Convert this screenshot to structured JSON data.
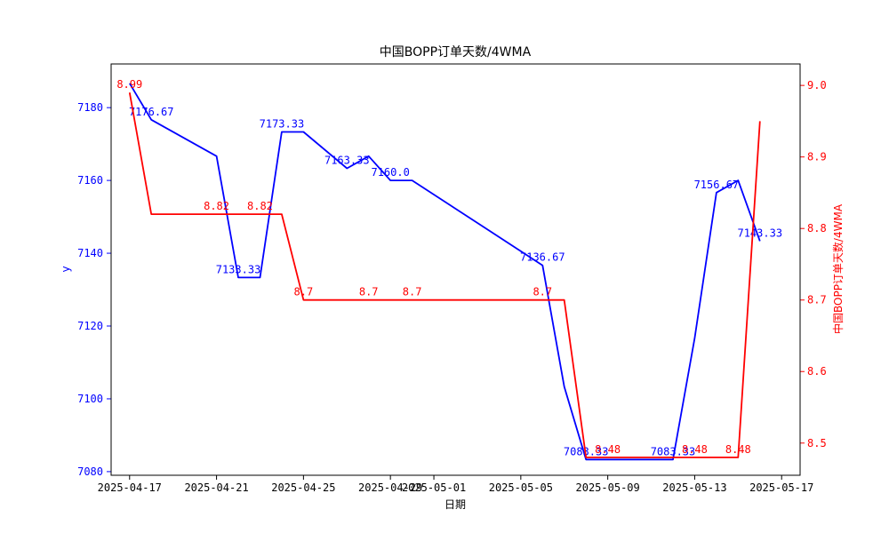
{
  "chart_data": {
    "type": "line",
    "title": "中国BOPP订单天数/4WMA",
    "xlabel": "日期",
    "ylabel_left": "y",
    "ylabel_right": "中国BOPP订单天数/4WMA",
    "grid": false,
    "x_ticks": [
      "2025-04-17",
      "2025-04-21",
      "2025-04-25",
      "2025-04-29",
      "2025-05-01",
      "2025-05-05",
      "2025-05-09",
      "2025-05-13",
      "2025-05-17"
    ],
    "y_left_ticks": [
      7080,
      7100,
      7120,
      7140,
      7160,
      7180
    ],
    "y_right_ticks": [
      "8.5",
      "8.6",
      "8.7",
      "8.8",
      "8.9",
      "9.0"
    ],
    "y_left_range": [
      7079,
      7192
    ],
    "y_right_range": [
      8.455,
      9.03
    ],
    "series": [
      {
        "axis": "left",
        "color": "#0000ff",
        "points": [
          {
            "x": "2025-04-17",
            "y": 7186.67
          },
          {
            "x": "2025-04-18",
            "y": 7176.67
          },
          {
            "x": "2025-04-21",
            "y": 7166.67
          },
          {
            "x": "2025-04-22",
            "y": 7133.33
          },
          {
            "x": "2025-04-23",
            "y": 7133.33
          },
          {
            "x": "2025-04-24",
            "y": 7173.33
          },
          {
            "x": "2025-04-25",
            "y": 7173.33
          },
          {
            "x": "2025-04-27",
            "y": 7163.33
          },
          {
            "x": "2025-04-28",
            "y": 7166.67
          },
          {
            "x": "2025-04-29",
            "y": 7160.0
          },
          {
            "x": "2025-04-30",
            "y": 7160.0
          },
          {
            "x": "2025-05-06",
            "y": 7136.67
          },
          {
            "x": "2025-05-07",
            "y": 7103.33
          },
          {
            "x": "2025-05-08",
            "y": 7083.33
          },
          {
            "x": "2025-05-09",
            "y": 7083.33
          },
          {
            "x": "2025-05-12",
            "y": 7083.33
          },
          {
            "x": "2025-05-13",
            "y": 7116.67
          },
          {
            "x": "2025-05-14",
            "y": 7156.67
          },
          {
            "x": "2025-05-15",
            "y": 7160.0
          },
          {
            "x": "2025-05-16",
            "y": 7143.33
          }
        ],
        "labels": [
          {
            "x": "2025-04-18",
            "y": 7176.67,
            "text": "7176.67"
          },
          {
            "x": "2025-04-22",
            "y": 7133.33,
            "text": "7133.33"
          },
          {
            "x": "2025-04-24",
            "y": 7173.33,
            "text": "7173.33"
          },
          {
            "x": "2025-04-27",
            "y": 7163.33,
            "text": "7163.33"
          },
          {
            "x": "2025-04-29",
            "y": 7160.0,
            "text": "7160.0"
          },
          {
            "x": "2025-05-06",
            "y": 7136.67,
            "text": "7136.67"
          },
          {
            "x": "2025-05-08",
            "y": 7083.33,
            "text": "7083.33"
          },
          {
            "x": "2025-05-12",
            "y": 7083.33,
            "text": "7083.33"
          },
          {
            "x": "2025-05-14",
            "y": 7156.67,
            "text": "7156.67"
          },
          {
            "x": "2025-05-16",
            "y": 7143.33,
            "text": "7143.33"
          }
        ]
      },
      {
        "axis": "right",
        "color": "#ff0000",
        "points": [
          {
            "x": "2025-04-17",
            "y": 8.99
          },
          {
            "x": "2025-04-18",
            "y": 8.82
          },
          {
            "x": "2025-04-24",
            "y": 8.82
          },
          {
            "x": "2025-04-25",
            "y": 8.7
          },
          {
            "x": "2025-05-07",
            "y": 8.7
          },
          {
            "x": "2025-05-08",
            "y": 8.48
          },
          {
            "x": "2025-05-15",
            "y": 8.48
          },
          {
            "x": "2025-05-16",
            "y": 8.95
          }
        ],
        "labels": [
          {
            "x": "2025-04-17",
            "y": 8.99,
            "text": "8.99"
          },
          {
            "x": "2025-04-21",
            "y": 8.82,
            "text": "8.82"
          },
          {
            "x": "2025-04-23",
            "y": 8.82,
            "text": "8.82"
          },
          {
            "x": "2025-04-25",
            "y": 8.7,
            "text": "8.7"
          },
          {
            "x": "2025-04-28",
            "y": 8.7,
            "text": "8.7"
          },
          {
            "x": "2025-04-30",
            "y": 8.7,
            "text": "8.7"
          },
          {
            "x": "2025-05-06",
            "y": 8.7,
            "text": "8.7"
          },
          {
            "x": "2025-05-09",
            "y": 8.48,
            "text": "8.48"
          },
          {
            "x": "2025-05-13",
            "y": 8.48,
            "text": "8.48"
          },
          {
            "x": "2025-05-15",
            "y": 8.48,
            "text": "8.48"
          }
        ]
      }
    ]
  }
}
